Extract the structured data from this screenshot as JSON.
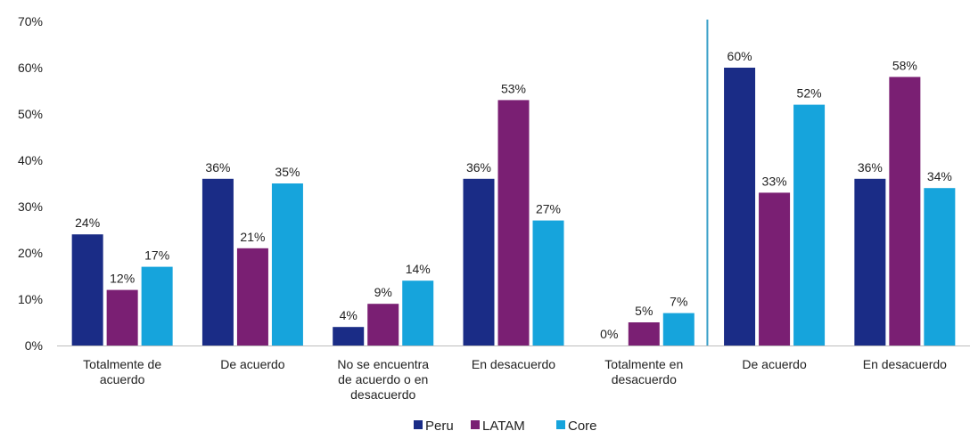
{
  "chart_data": {
    "type": "bar",
    "categories": [
      "Totalmente de acuerdo",
      "De acuerdo",
      "No se encuentra de acuerdo o en desacuerdo",
      "En desacuerdo",
      "Totalmente en desacuerdo",
      "De acuerdo",
      "En desacuerdo"
    ],
    "category_lines": [
      [
        "Totalmente de",
        "acuerdo"
      ],
      [
        "De acuerdo"
      ],
      [
        "No se encuentra",
        "de acuerdo o en",
        "desacuerdo"
      ],
      [
        "En desacuerdo"
      ],
      [
        "Totalmente en",
        "desacuerdo"
      ],
      [
        "De acuerdo"
      ],
      [
        "En desacuerdo"
      ]
    ],
    "series": [
      {
        "name": "Peru",
        "color": "#1a2c86",
        "values": [
          24,
          36,
          4,
          36,
          0,
          60,
          36
        ],
        "labels": [
          "24%",
          "36%",
          "4%",
          "36%",
          "0%",
          "60%",
          "36%"
        ]
      },
      {
        "name": "LATAM",
        "color": "#7a1f73",
        "values": [
          12,
          21,
          9,
          53,
          5,
          33,
          58
        ],
        "labels": [
          "12%",
          "21%",
          "9%",
          "53%",
          "5%",
          "33%",
          "58%"
        ]
      },
      {
        "name": "Core",
        "color": "#16a4dc",
        "values": [
          17,
          35,
          14,
          27,
          7,
          52,
          34
        ],
        "labels": [
          "17%",
          "35%",
          "14%",
          "27%",
          "7%",
          "52%",
          "34%"
        ]
      }
    ],
    "ylim": [
      0,
      70
    ],
    "yticks": [
      0,
      10,
      20,
      30,
      40,
      50,
      60,
      70
    ],
    "ytick_labels": [
      "0%",
      "10%",
      "20%",
      "30%",
      "40%",
      "50%",
      "60%",
      "70%"
    ],
    "separator_after_category": 4,
    "separator_color": "#3aa0c8",
    "legend_position": "bottom-center",
    "grid": false
  }
}
